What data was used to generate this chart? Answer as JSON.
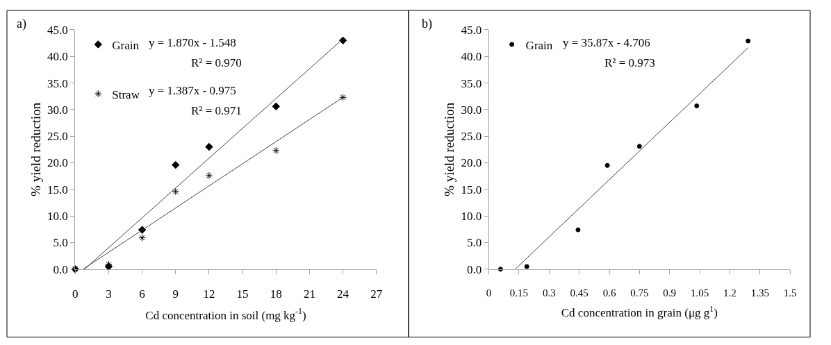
{
  "chart_data": [
    {
      "type": "scatter",
      "xlabel": "Cd concentration in soil (mg kg$^{-1}$)",
      "ylabel": "% yield reduction",
      "annotations": [
        "a)",
        "y = 1.870x - 1.548",
        "R² = 0.970",
        "y = 1.387x - 0.975",
        "R² = 0.971"
      ],
      "x": [
        0,
        3,
        6,
        9,
        12,
        18,
        24
      ],
      "series": [
        {
          "name": "Grain",
          "marker": "diamond",
          "color": "#000000",
          "values": [
            0,
            0.5,
            7.4,
            19.6,
            23.0,
            30.6,
            43.0
          ]
        },
        {
          "name": "Straw",
          "marker": "cross",
          "color": "#000000",
          "values": [
            0,
            0.9,
            5.9,
            14.6,
            17.6,
            22.3,
            32.3
          ]
        },
        {
          "type": "line",
          "color": "#404040",
          "x": [
            0.83,
            24
          ],
          "values": [
            0,
            43.3
          ]
        },
        {
          "type": "line",
          "color": "#404040",
          "x": [
            0.7,
            24
          ],
          "values": [
            0,
            32.3
          ]
        }
      ],
      "xlim": [
        0,
        27
      ],
      "xticks": [
        0,
        3,
        6,
        9,
        12,
        15,
        18,
        21,
        24,
        27
      ],
      "ylim": [
        0,
        45
      ],
      "yticks": [
        {
          "value": 0,
          "label": "0.0"
        },
        {
          "value": 5,
          "label": "5.0"
        },
        {
          "value": 10,
          "label": "10.0"
        },
        {
          "value": 15,
          "label": "15.0"
        },
        {
          "value": 20,
          "label": "20.0"
        },
        {
          "value": 25,
          "label": "25.0"
        },
        {
          "value": 30,
          "label": "30.0"
        },
        {
          "value": 35,
          "label": "35.0"
        },
        {
          "value": 40,
          "label": "40.0"
        },
        {
          "value": 45,
          "label": "45.0"
        }
      ],
      "grid": false,
      "legend": "top left"
    },
    {
      "type": "scatter",
      "xlabel": "Cd concentration in grain (μg g$^{1}$)",
      "ylabel": "% yield reduction",
      "annotations": [
        "b)",
        "y = 35.87x - 4.706",
        "R² = 0.973"
      ],
      "x": [
        0.058,
        0.189,
        0.444,
        0.59,
        0.75,
        1.035,
        1.291
      ],
      "series": [
        {
          "name": "Grain",
          "marker": "circle",
          "color": "#000000",
          "values": [
            0,
            0.5,
            7.4,
            19.5,
            23.1,
            30.7,
            42.9
          ]
        },
        {
          "type": "line",
          "color": "#404040",
          "x": [
            0.131,
            1.29
          ],
          "values": [
            0,
            41.6
          ]
        }
      ],
      "xlim": [
        0,
        1.5
      ],
      "xticks": [
        0,
        0.15,
        0.3,
        0.45,
        0.6,
        0.75,
        0.9,
        1.05,
        1.2,
        1.35,
        1.5
      ],
      "ylim": [
        0,
        45
      ],
      "yticks": [
        {
          "value": 0,
          "label": "0.0"
        },
        {
          "value": 5,
          "label": "5.0"
        },
        {
          "value": 10,
          "label": "10.0"
        },
        {
          "value": 15,
          "label": "15.0"
        },
        {
          "value": 20,
          "label": "20.0"
        },
        {
          "value": 25,
          "label": "25.0"
        },
        {
          "value": 30,
          "label": "30.0"
        },
        {
          "value": 35,
          "label": "35.0"
        },
        {
          "value": 40,
          "label": "40.0"
        },
        {
          "value": 45,
          "label": "45.0"
        }
      ],
      "grid": false,
      "legend": "top left"
    }
  ]
}
